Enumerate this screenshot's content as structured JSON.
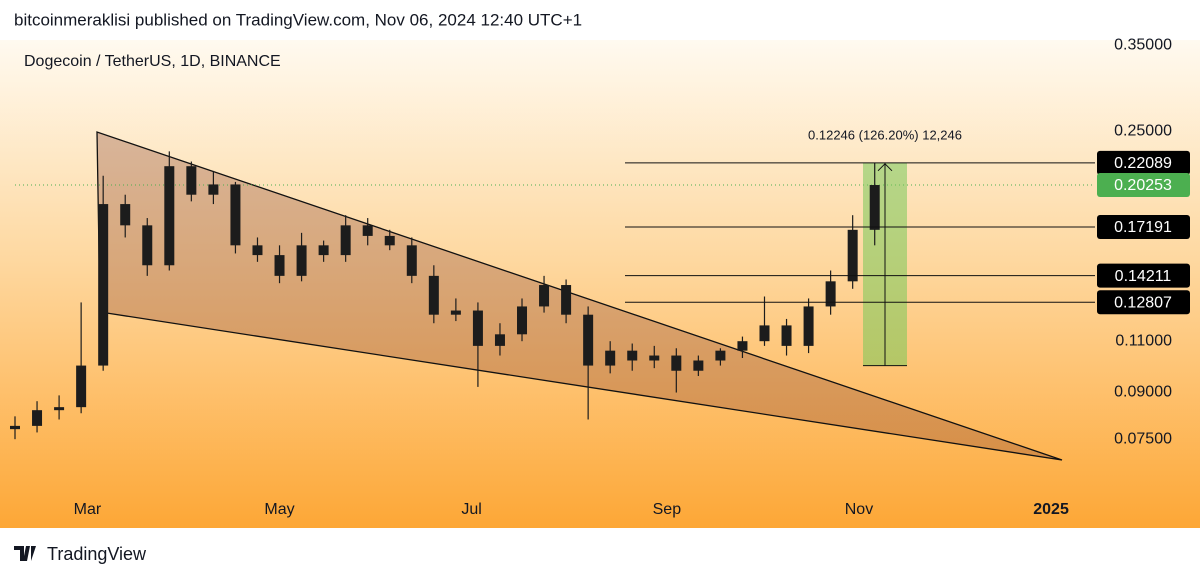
{
  "header": "bitcoinmeraklisi published on TradingView.com, Nov 06, 2024 12:40 UTC+1",
  "footer": "TradingView",
  "chart_data": {
    "type": "candlestick",
    "title": "Dogecoin / TetherUS, 1D, BINANCE",
    "log_scale": true,
    "color": "#1c1c1c",
    "x": [
      37,
      44,
      51,
      58,
      65,
      72,
      79,
      86,
      93,
      100,
      107,
      114,
      121,
      128,
      135,
      142,
      149,
      156,
      163,
      170,
      177,
      184,
      191,
      198,
      205,
      212,
      219,
      226,
      233,
      240,
      247,
      254,
      261,
      268,
      275,
      282,
      289,
      296,
      303,
      310
    ],
    "open": [
      0.078,
      0.079,
      0.084,
      0.085,
      0.1,
      0.188,
      0.173,
      0.148,
      0.218,
      0.195,
      0.203,
      0.16,
      0.154,
      0.142,
      0.16,
      0.154,
      0.173,
      0.166,
      0.16,
      0.142,
      0.122,
      0.124,
      0.108,
      0.113,
      0.126,
      0.137,
      0.122,
      0.1,
      0.106,
      0.102,
      0.104,
      0.098,
      0.102,
      0.106,
      0.11,
      0.117,
      0.108,
      0.126,
      0.139,
      0.17
    ],
    "high": [
      0.082,
      0.087,
      0.089,
      0.128,
      0.21,
      0.195,
      0.178,
      0.231,
      0.222,
      0.214,
      0.205,
      0.165,
      0.16,
      0.168,
      0.163,
      0.18,
      0.178,
      0.17,
      0.165,
      0.148,
      0.13,
      0.128,
      0.118,
      0.13,
      0.142,
      0.14,
      0.126,
      0.11,
      0.109,
      0.108,
      0.107,
      0.104,
      0.107,
      0.112,
      0.131,
      0.12,
      0.13,
      0.145,
      0.18,
      0.22089
    ],
    "low": [
      0.075,
      0.077,
      0.081,
      0.083,
      0.098,
      0.165,
      0.142,
      0.145,
      0.19,
      0.188,
      0.155,
      0.15,
      0.138,
      0.139,
      0.15,
      0.15,
      0.16,
      0.157,
      0.138,
      0.118,
      0.119,
      0.092,
      0.104,
      0.11,
      0.123,
      0.118,
      0.081,
      0.097,
      0.098,
      0.099,
      0.09,
      0.096,
      0.1,
      0.103,
      0.108,
      0.104,
      0.105,
      0.122,
      0.135,
      0.16
    ],
    "close": [
      0.079,
      0.084,
      0.085,
      0.1,
      0.188,
      0.173,
      0.148,
      0.218,
      0.195,
      0.203,
      0.16,
      0.154,
      0.142,
      0.16,
      0.154,
      0.173,
      0.166,
      0.16,
      0.142,
      0.122,
      0.124,
      0.108,
      0.113,
      0.126,
      0.137,
      0.122,
      0.1,
      0.106,
      0.102,
      0.104,
      0.098,
      0.102,
      0.106,
      0.11,
      0.117,
      0.108,
      0.126,
      0.139,
      0.17,
      0.20253
    ],
    "xlim": [
      37,
      379
    ],
    "xticks": [
      {
        "value": 60,
        "label": "Mar"
      },
      {
        "value": 121,
        "label": "May"
      },
      {
        "value": 182,
        "label": "Jul"
      },
      {
        "value": 244,
        "label": "Sep"
      },
      {
        "value": 305,
        "label": "Nov"
      },
      {
        "value": 366,
        "label": "2025"
      }
    ],
    "ylim": [
      0.053,
      0.357
    ],
    "yticks": [
      {
        "value": 0.35,
        "label": "0.35000"
      },
      {
        "value": 0.25,
        "label": "0.25000"
      },
      {
        "value": 0.11,
        "label": "0.11000"
      },
      {
        "value": 0.09,
        "label": "0.09000"
      },
      {
        "value": 0.075,
        "label": "0.07500"
      }
    ],
    "levels": [
      0.22089,
      0.17191,
      0.14211,
      0.12807
    ],
    "last_price": 0.20253,
    "last_price_color": "#4caf50",
    "annotation": "0.12246 (126.20%) 12,246"
  }
}
